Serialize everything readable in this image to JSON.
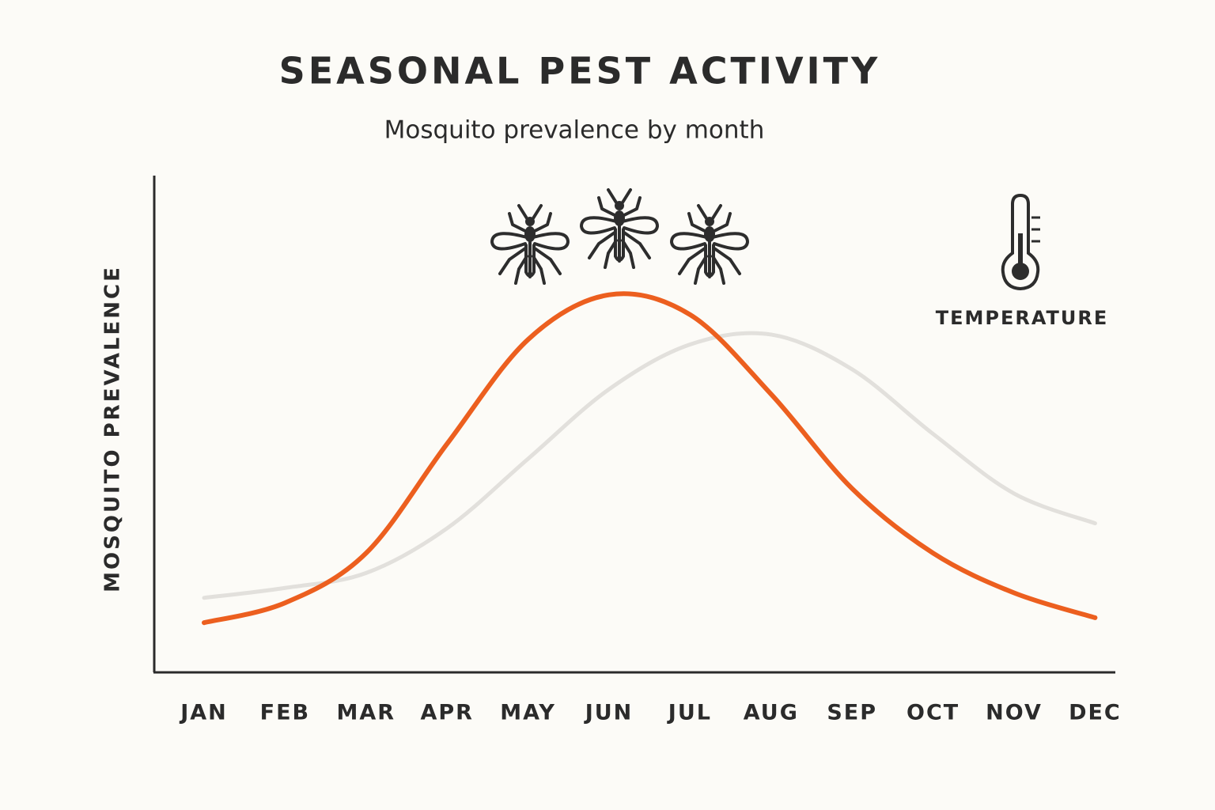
{
  "chart_data": {
    "type": "line",
    "title": "SEASONAL PEST ACTIVITY",
    "subtitle": "Mosquito prevalence by month",
    "y_label": "MOSQUITO PREVALENCE",
    "categories": [
      "JAN",
      "FEB",
      "MAR",
      "APR",
      "MAY",
      "JUN",
      "JUL",
      "AUG",
      "SEP",
      "OCT",
      "NOV",
      "DEC"
    ],
    "ylim": [
      0,
      100
    ],
    "grid": false,
    "legend_position": "top-right",
    "series": [
      {
        "color": "#ec5f1f",
        "values": [
          10,
          14,
          24,
          46,
          67,
          76,
          72,
          56,
          37,
          24,
          16,
          11
        ]
      },
      {
        "name": "TEMPERATURE",
        "color": "#e2e0dc",
        "values": [
          15,
          17,
          20,
          29,
          43,
          57,
          66,
          68,
          61,
          48,
          36,
          30
        ]
      }
    ]
  }
}
